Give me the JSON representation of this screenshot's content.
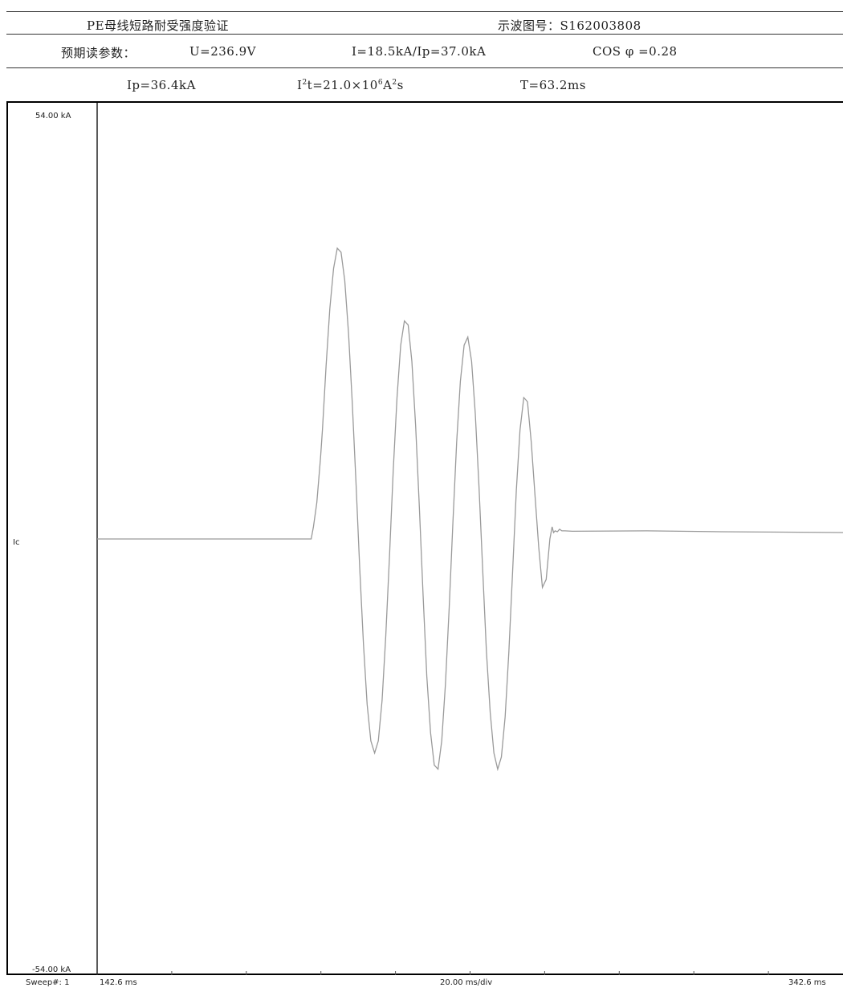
{
  "header": {
    "title": "PE母线短路耐受强度验证",
    "osc_label": "示波图号：S162003808",
    "prospective_label": "预期读参数：",
    "voltage": "U=236.9V",
    "current": "I=18.5kA/Ip=37.0kA",
    "cos_phi": "COS φ =0.28",
    "ip": "Ip=36.4kA",
    "i2t_prefix": "I",
    "i2t_mid": "t=21.0×10",
    "i2t_unit": "A",
    "i2t_suffix": "s",
    "i2t_exp1": "2",
    "i2t_exp2": "6",
    "i2t_exp3": "2",
    "duration": "T=63.2ms"
  },
  "chart_data": {
    "type": "line",
    "channel": "Ic",
    "y_top_label": "54.00 kA",
    "y_bottom_label": "-54.00 kA",
    "ylim": [
      -54,
      54
    ],
    "xlim": [
      142.6,
      342.6
    ],
    "x_start_label": "142.6 ms",
    "x_div_label": "20.00 ms/div",
    "x_end_label": "342.6 ms",
    "sweep_label": "Sweep#: 1",
    "series": [
      {
        "x": [
          142.6,
          200.0,
          200.6,
          201.5,
          202.5,
          203.0,
          204.0,
          205.0,
          206.0,
          207.0,
          208.0,
          209.0,
          210.0,
          211.0,
          212.0,
          213.0,
          214.0,
          215.0,
          216.0,
          217.0,
          218.0,
          219.0,
          220.0,
          221.0,
          222.0,
          223.0,
          224.0,
          225.0,
          226.0,
          227.0,
          228.0,
          229.0,
          230.0,
          231.0,
          232.0,
          233.0,
          234.0,
          235.0,
          236.0,
          237.0,
          238.0,
          239.0,
          240.0,
          241.0,
          242.0,
          243.0,
          244.0,
          245.0,
          246.0,
          247.0,
          248.0,
          249.0,
          250.0,
          251.0,
          252.0,
          253.0,
          254.0,
          255.0,
          256.0,
          257.0,
          258.0,
          259.0,
          260.0,
          261.0,
          262.0,
          263.0,
          264.0,
          264.6,
          265.0,
          265.4,
          266.0,
          266.6,
          267.2,
          268.0,
          270.0,
          290.0,
          310.0,
          342.6
        ],
        "y": [
          0,
          0,
          1.5,
          4.5,
          10.0,
          13.5,
          21.5,
          28.5,
          33.5,
          36.0,
          35.5,
          32.0,
          25.5,
          17.0,
          7.0,
          -3.5,
          -13.0,
          -20.5,
          -25.0,
          -26.5,
          -25.0,
          -20.0,
          -12.0,
          -2.0,
          8.5,
          17.5,
          24.0,
          27.0,
          26.5,
          22.0,
          14.0,
          4.0,
          -7.0,
          -17.0,
          -24.0,
          -28.0,
          -28.5,
          -25.0,
          -18.0,
          -8.5,
          2.0,
          12.0,
          19.5,
          24.0,
          25.0,
          22.0,
          15.5,
          6.5,
          -4.0,
          -14.0,
          -21.5,
          -26.5,
          -28.5,
          -27.0,
          -22.0,
          -14.0,
          -4.0,
          6.0,
          13.5,
          17.5,
          17.0,
          12.0,
          5.5,
          -1.0,
          -6.0,
          -5.0,
          0.0,
          1.5,
          0.8,
          1.0,
          0.9,
          1.2,
          1.0,
          1.0,
          0.95,
          1.0,
          0.9,
          0.8
        ]
      }
    ],
    "grid": false
  }
}
